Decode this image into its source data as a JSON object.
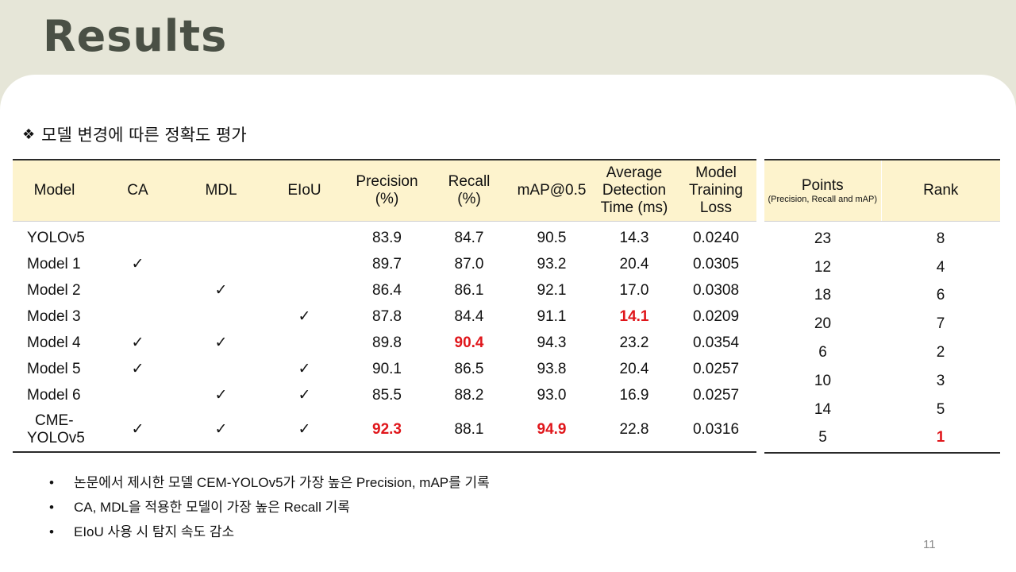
{
  "slide": {
    "title": "Results",
    "subtitle_bullet": "❖",
    "subtitle": "모델 변경에 따른 정확도 평가",
    "page_number": "11"
  },
  "colors": {
    "highlight": "#e0161b",
    "header_bg": "#fdf3cd",
    "title": "#4a5045",
    "background": "#e6e6d8"
  },
  "table": {
    "headers": {
      "model": "Model",
      "ca": "CA",
      "mdl": "MDL",
      "eiou": "EIoU",
      "precision_l1": "Precision",
      "precision_l2": "(%)",
      "recall_l1": "Recall",
      "recall_l2": "(%)",
      "map": "mAP@0.5",
      "time_l1": "Average",
      "time_l2": "Detection",
      "time_l3": "Time (ms)",
      "loss_l1": "Model",
      "loss_l2": "Training",
      "loss_l3": "Loss"
    },
    "check_mark": "✓",
    "rows": [
      {
        "model": "YOLOv5",
        "ca": "",
        "mdl": "",
        "eiou": "",
        "precision": "83.9",
        "recall": "84.7",
        "map": "90.5",
        "time": "14.3",
        "loss": "0.0240"
      },
      {
        "model": "Model 1",
        "ca": "✓",
        "mdl": "",
        "eiou": "",
        "precision": "89.7",
        "recall": "87.0",
        "map": "93.2",
        "time": "20.4",
        "loss": "0.0305"
      },
      {
        "model": "Model 2",
        "ca": "",
        "mdl": "✓",
        "eiou": "",
        "precision": "86.4",
        "recall": "86.1",
        "map": "92.1",
        "time": "17.0",
        "loss": "0.0308"
      },
      {
        "model": "Model 3",
        "ca": "",
        "mdl": "",
        "eiou": "✓",
        "precision": "87.8",
        "recall": "84.4",
        "map": "91.1",
        "time": "14.1",
        "loss": "0.0209"
      },
      {
        "model": "Model 4",
        "ca": "✓",
        "mdl": "✓",
        "eiou": "",
        "precision": "89.8",
        "recall": "90.4",
        "map": "94.3",
        "time": "23.2",
        "loss": "0.0354"
      },
      {
        "model": "Model 5",
        "ca": "✓",
        "mdl": "",
        "eiou": "✓",
        "precision": "90.1",
        "recall": "86.5",
        "map": "93.8",
        "time": "20.4",
        "loss": "0.0257"
      },
      {
        "model": "Model 6",
        "ca": "",
        "mdl": "✓",
        "eiou": "✓",
        "precision": "85.5",
        "recall": "88.2",
        "map": "93.0",
        "time": "16.9",
        "loss": "0.0257"
      },
      {
        "model_l1": "CME-",
        "model_l2": "YOLOv5",
        "ca": "✓",
        "mdl": "✓",
        "eiou": "✓",
        "precision": "92.3",
        "recall": "88.1",
        "map": "94.9",
        "time": "22.8",
        "loss": "0.0316"
      }
    ]
  },
  "side_table": {
    "headers": {
      "points": "Points",
      "points_note": "(Precision, Recall and mAP)",
      "rank": "Rank"
    },
    "rows": [
      {
        "points": "23",
        "rank": "8"
      },
      {
        "points": "12",
        "rank": "4"
      },
      {
        "points": "18",
        "rank": "6"
      },
      {
        "points": "20",
        "rank": "7"
      },
      {
        "points": "6",
        "rank": "2"
      },
      {
        "points": "10",
        "rank": "3"
      },
      {
        "points": "14",
        "rank": "5"
      },
      {
        "points": "5",
        "rank": "1"
      }
    ]
  },
  "notes": [
    "논문에서 제시한 모델 CEM-YOLOv5가 가장 높은 Precision,  mAP를 기록",
    "CA, MDL을 적용한 모델이 가장 높은 Recall 기록",
    "EIoU 사용 시 탐지 속도 감소"
  ]
}
